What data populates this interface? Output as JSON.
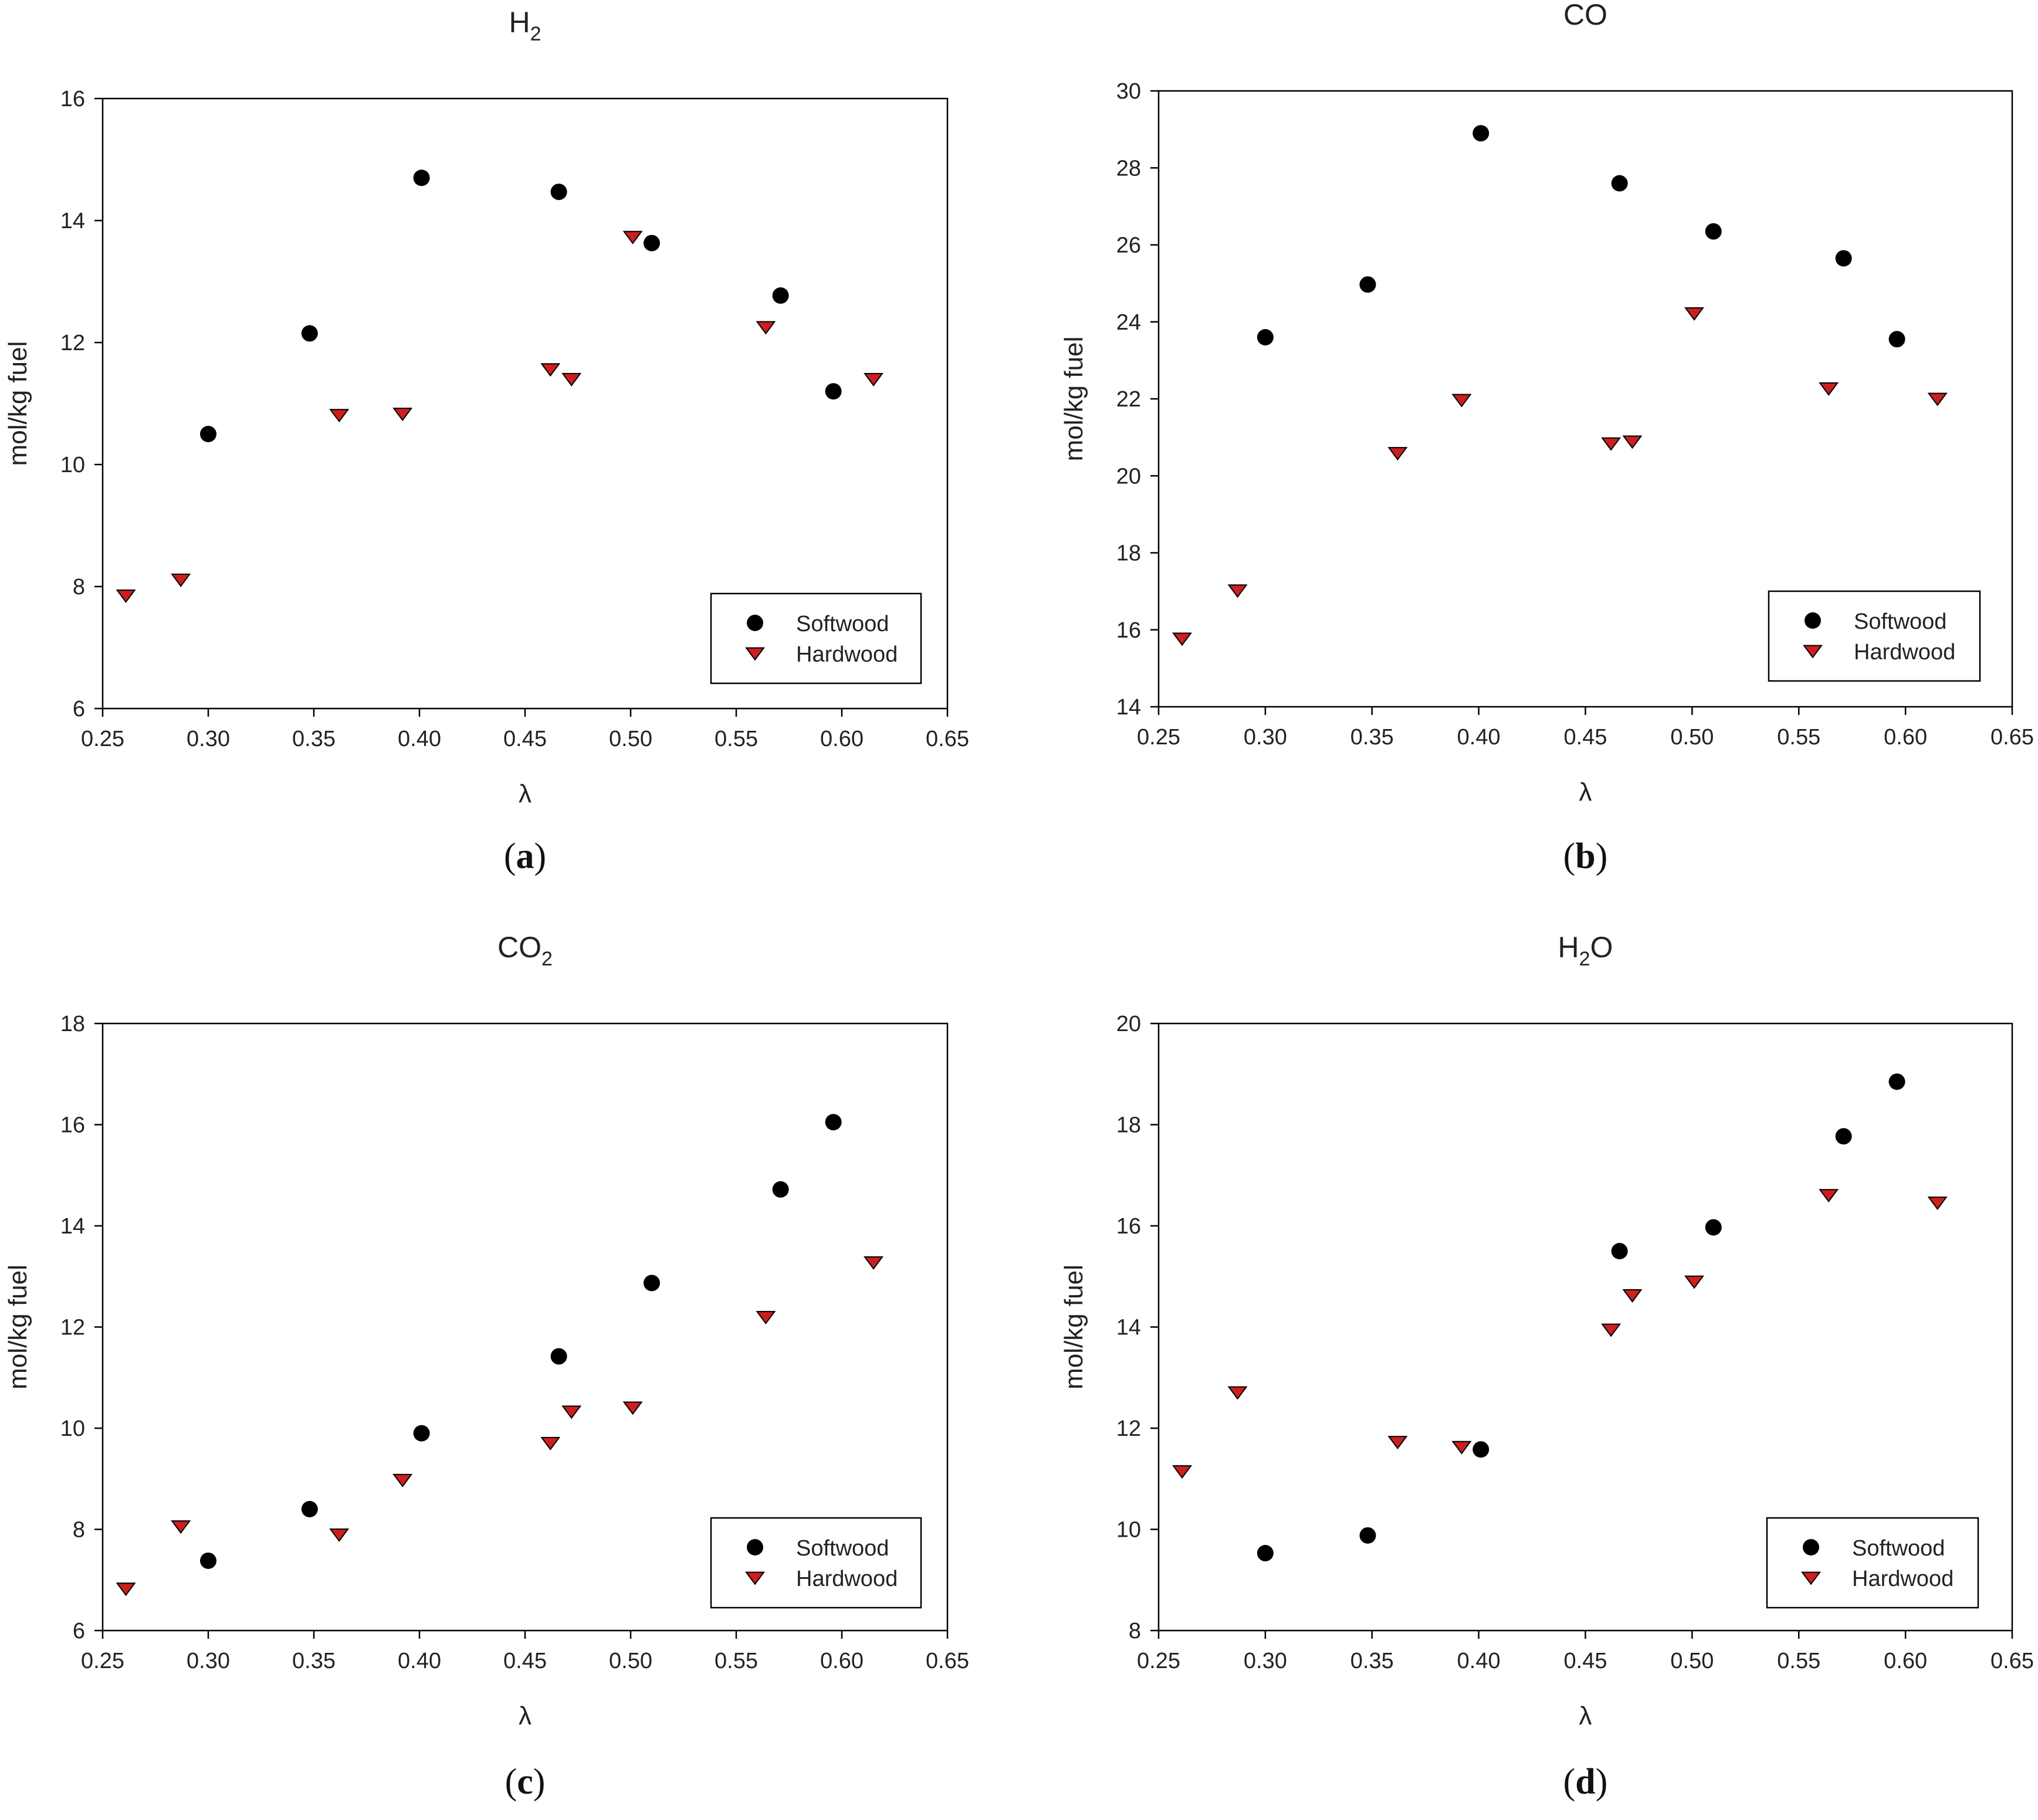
{
  "figure": {
    "colors": {
      "softwood": "#000000",
      "hardwood": "#cc1f1f",
      "hardwood_outline": "#000000",
      "axis": "#000000"
    }
  },
  "chart_data": [
    {
      "type": "scatter",
      "title": "H2",
      "title_base": "H",
      "title_sub": "2",
      "title_tail": "",
      "caption": "a",
      "xlabel": "λ",
      "ylabel": "mol/kg fuel",
      "xlim": [
        0.25,
        0.65
      ],
      "ylim": [
        6,
        16
      ],
      "xticks": [
        0.25,
        0.3,
        0.35,
        0.4,
        0.45,
        0.5,
        0.55,
        0.6,
        0.65
      ],
      "xtick_labels": [
        "0.25",
        "0.30",
        "0.35",
        "0.40",
        "0.45",
        "0.50",
        "0.55",
        "0.60",
        "0.65"
      ],
      "yticks": [
        6,
        8,
        10,
        12,
        14,
        16
      ],
      "legend_position": "bottom-right",
      "series": [
        {
          "name": "Softwood",
          "marker": "circle",
          "x": [
            0.3,
            0.348,
            0.401,
            0.466,
            0.51,
            0.571,
            0.596
          ],
          "y": [
            10.5,
            12.15,
            14.7,
            14.47,
            13.63,
            12.77,
            11.2
          ]
        },
        {
          "name": "Hardwood",
          "marker": "triangle-down",
          "x": [
            0.261,
            0.287,
            0.362,
            0.392,
            0.462,
            0.472,
            0.501,
            0.564,
            0.615
          ],
          "y": [
            7.87,
            8.13,
            10.83,
            10.85,
            11.58,
            11.42,
            13.75,
            12.27,
            11.42
          ]
        }
      ]
    },
    {
      "type": "scatter",
      "title": "CO",
      "title_base": "CO",
      "title_sub": "",
      "title_tail": "",
      "caption": "b",
      "xlabel": "λ",
      "ylabel": "mol/kg fuel",
      "xlim": [
        0.25,
        0.65
      ],
      "ylim": [
        14,
        30
      ],
      "xticks": [
        0.25,
        0.3,
        0.35,
        0.4,
        0.45,
        0.5,
        0.55,
        0.6,
        0.65
      ],
      "xtick_labels": [
        "0.25",
        "0.30",
        "0.35",
        "0.40",
        "0.45",
        "0.50",
        "0.55",
        "0.60",
        "0.65"
      ],
      "yticks": [
        14,
        16,
        18,
        20,
        22,
        24,
        26,
        28,
        30
      ],
      "legend_position": "bottom-right",
      "series": [
        {
          "name": "Softwood",
          "marker": "circle",
          "x": [
            0.3,
            0.348,
            0.401,
            0.466,
            0.51,
            0.571,
            0.596
          ],
          "y": [
            23.6,
            24.97,
            28.9,
            27.6,
            26.35,
            25.65,
            23.55
          ]
        },
        {
          "name": "Hardwood",
          "marker": "triangle-down",
          "x": [
            0.261,
            0.287,
            0.362,
            0.392,
            0.462,
            0.472,
            0.501,
            0.564,
            0.615
          ],
          "y": [
            15.8,
            17.05,
            20.62,
            22.0,
            20.87,
            20.92,
            24.25,
            22.3,
            22.03
          ]
        }
      ]
    },
    {
      "type": "scatter",
      "title": "CO2",
      "title_base": "CO",
      "title_sub": "2",
      "title_tail": "",
      "caption": "c",
      "xlabel": "λ",
      "ylabel": "mol/kg fuel",
      "xlim": [
        0.25,
        0.65
      ],
      "ylim": [
        6,
        18
      ],
      "xticks": [
        0.25,
        0.3,
        0.35,
        0.4,
        0.45,
        0.5,
        0.55,
        0.6,
        0.65
      ],
      "xtick_labels": [
        "0.25",
        "0.30",
        "0.35",
        "0.40",
        "0.45",
        "0.50",
        "0.55",
        "0.60",
        "0.65"
      ],
      "yticks": [
        6,
        8,
        10,
        12,
        14,
        16,
        18
      ],
      "legend_position": "bottom-right",
      "series": [
        {
          "name": "Softwood",
          "marker": "circle",
          "x": [
            0.3,
            0.348,
            0.401,
            0.466,
            0.51,
            0.571,
            0.596
          ],
          "y": [
            7.38,
            8.4,
            9.9,
            11.42,
            12.87,
            14.72,
            16.05
          ]
        },
        {
          "name": "Hardwood",
          "marker": "triangle-down",
          "x": [
            0.261,
            0.287,
            0.362,
            0.392,
            0.462,
            0.472,
            0.501,
            0.564,
            0.615
          ],
          "y": [
            6.85,
            8.08,
            7.92,
            9.0,
            9.73,
            10.35,
            10.43,
            12.22,
            13.3
          ]
        }
      ]
    },
    {
      "type": "scatter",
      "title": "H2O",
      "title_base": "H",
      "title_sub": "2",
      "title_tail": "O",
      "caption": "d",
      "xlabel": "λ",
      "ylabel": "mol/kg fuel",
      "xlim": [
        0.25,
        0.65
      ],
      "ylim": [
        8,
        20
      ],
      "xticks": [
        0.25,
        0.3,
        0.35,
        0.4,
        0.45,
        0.5,
        0.55,
        0.6,
        0.65
      ],
      "xtick_labels": [
        "0.25",
        "0.30",
        "0.35",
        "0.40",
        "0.45",
        "0.50",
        "0.55",
        "0.60",
        "0.65"
      ],
      "yticks": [
        8,
        10,
        12,
        14,
        16,
        18,
        20
      ],
      "legend_position": "bottom-right",
      "series": [
        {
          "name": "Softwood",
          "marker": "circle",
          "x": [
            0.3,
            0.348,
            0.401,
            0.466,
            0.51,
            0.571,
            0.596
          ],
          "y": [
            9.53,
            9.88,
            11.58,
            15.5,
            15.97,
            17.77,
            18.85
          ]
        },
        {
          "name": "Hardwood",
          "marker": "triangle-down",
          "x": [
            0.261,
            0.287,
            0.362,
            0.392,
            0.462,
            0.472,
            0.501,
            0.564,
            0.615
          ],
          "y": [
            11.17,
            12.73,
            11.75,
            11.65,
            13.97,
            14.65,
            14.92,
            16.63,
            16.48
          ]
        }
      ]
    }
  ]
}
